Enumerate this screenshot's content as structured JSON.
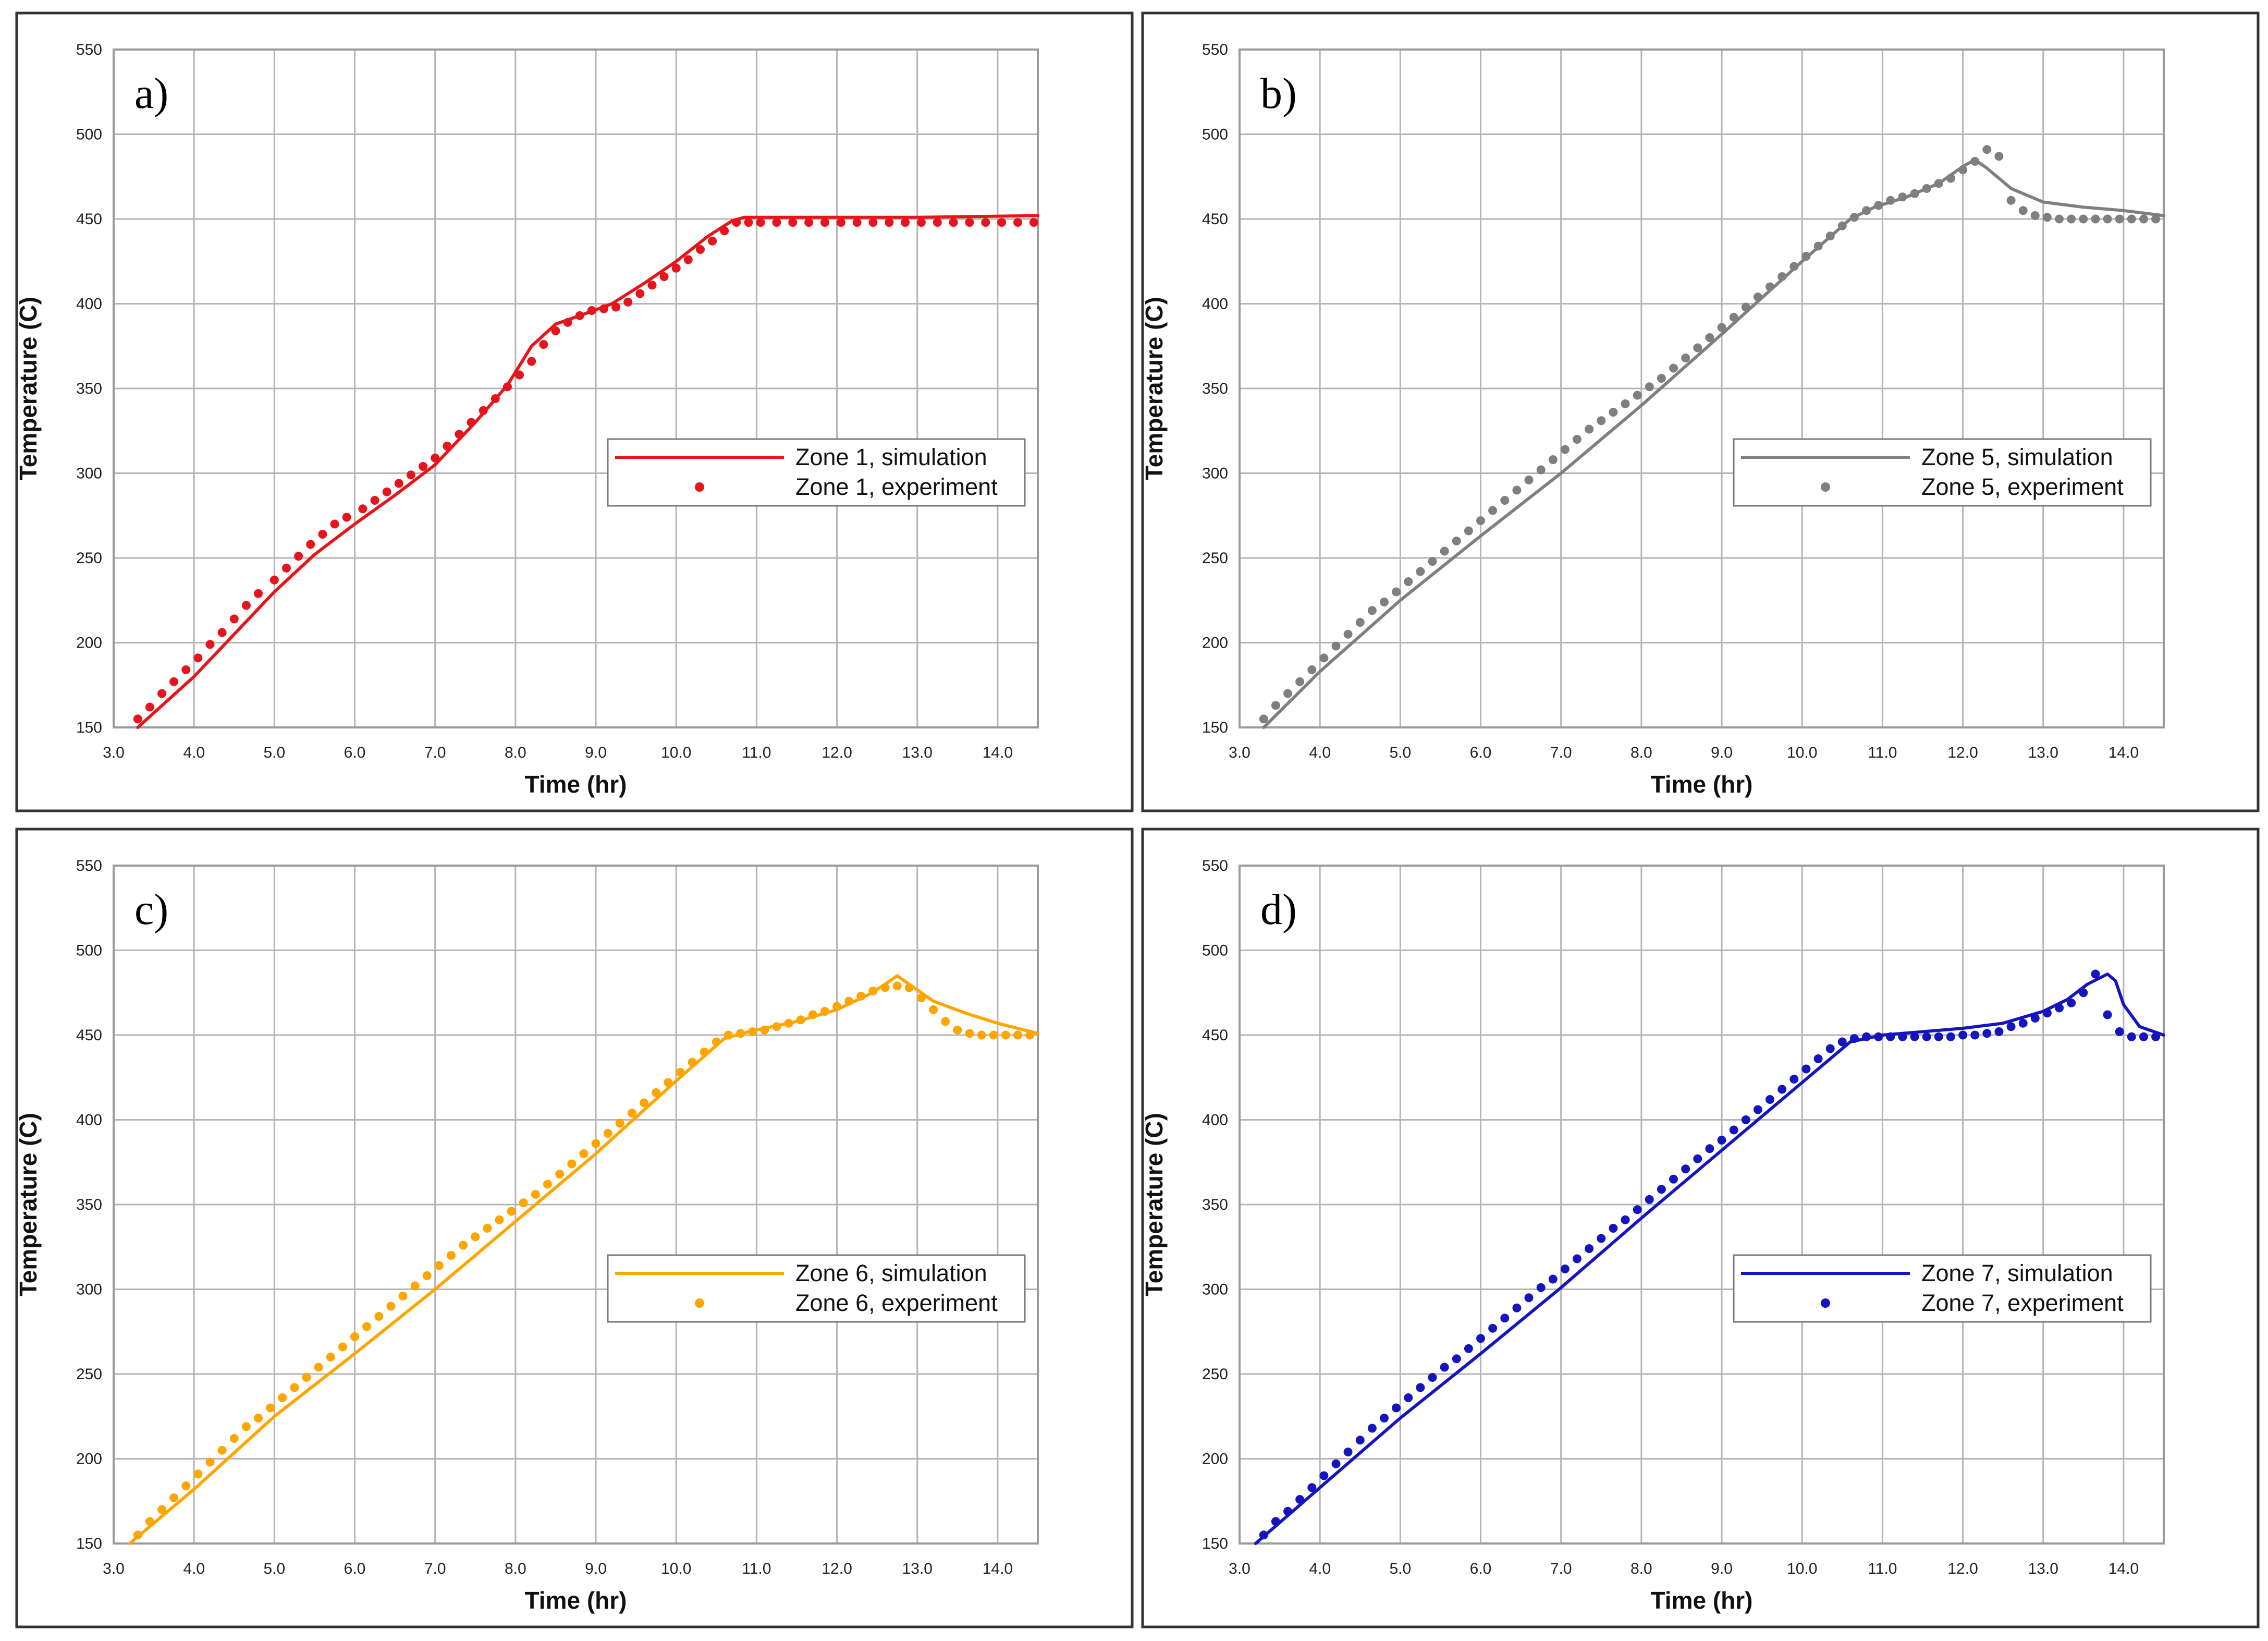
{
  "chart_data": [
    {
      "type": "scatter",
      "panel_label": "a)",
      "color": "#e8141c",
      "xlabel": "Time (hr)",
      "ylabel": "Temperature (C)",
      "xlim": [
        3.0,
        14.5
      ],
      "ylim": [
        150,
        550
      ],
      "xticks": [
        "3.0",
        "4.0",
        "5.0",
        "6.0",
        "7.0",
        "8.0",
        "9.0",
        "10.0",
        "11.0",
        "12.0",
        "13.0",
        "14.0"
      ],
      "yticks": [
        "150",
        "200",
        "250",
        "300",
        "350",
        "400",
        "450",
        "500",
        "550"
      ],
      "grid": true,
      "legend_position": "center-right",
      "series": [
        {
          "name": "Zone 1, simulation",
          "kind": "line",
          "x": [
            3.3,
            4.0,
            4.5,
            5.0,
            5.5,
            6.0,
            6.5,
            7.0,
            7.5,
            7.9,
            8.2,
            8.5,
            8.8,
            9.2,
            9.6,
            10.0,
            10.4,
            10.7,
            10.85,
            12.0,
            13.0,
            14.5
          ],
          "y": [
            150,
            180,
            205,
            230,
            252,
            270,
            287,
            305,
            330,
            352,
            375,
            388,
            393,
            400,
            412,
            425,
            440,
            449,
            451,
            451,
            451,
            452
          ]
        },
        {
          "name": "Zone 1, experiment",
          "kind": "scatter",
          "x": [
            3.3,
            3.45,
            3.6,
            3.75,
            3.9,
            4.05,
            4.2,
            4.35,
            4.5,
            4.65,
            4.8,
            5.0,
            5.15,
            5.3,
            5.45,
            5.6,
            5.75,
            5.9,
            6.1,
            6.25,
            6.4,
            6.55,
            6.7,
            6.85,
            7.0,
            7.15,
            7.3,
            7.45,
            7.6,
            7.75,
            7.9,
            8.05,
            8.2,
            8.35,
            8.5,
            8.65,
            8.8,
            8.95,
            9.1,
            9.25,
            9.4,
            9.55,
            9.7,
            9.85,
            10.0,
            10.15,
            10.3,
            10.45,
            10.6,
            10.75,
            10.9,
            11.05,
            11.25,
            11.45,
            11.65,
            11.85,
            12.05,
            12.25,
            12.45,
            12.65,
            12.85,
            13.05,
            13.25,
            13.45,
            13.65,
            13.85,
            14.05,
            14.25,
            14.45
          ],
          "y": [
            155,
            162,
            170,
            177,
            184,
            191,
            199,
            206,
            214,
            222,
            229,
            237,
            244,
            251,
            258,
            264,
            270,
            274,
            279,
            284,
            289,
            294,
            299,
            304,
            309,
            316,
            323,
            330,
            337,
            344,
            351,
            358,
            366,
            376,
            384,
            389,
            393,
            396,
            397,
            398,
            401,
            406,
            411,
            416,
            421,
            426,
            432,
            437,
            443,
            448,
            448,
            448,
            448,
            448,
            448,
            448,
            448,
            448,
            448,
            448,
            448,
            448,
            448,
            448,
            448,
            448,
            448,
            448,
            448
          ]
        }
      ]
    },
    {
      "type": "scatter",
      "panel_label": "b)",
      "color": "#7f7f7f",
      "xlabel": "Time (hr)",
      "ylabel": "Temperature (C)",
      "xlim": [
        3.0,
        14.5
      ],
      "ylim": [
        150,
        550
      ],
      "xticks": [
        "3.0",
        "4.0",
        "5.0",
        "6.0",
        "7.0",
        "8.0",
        "9.0",
        "10.0",
        "11.0",
        "12.0",
        "13.0",
        "14.0"
      ],
      "yticks": [
        "150",
        "200",
        "250",
        "300",
        "350",
        "400",
        "450",
        "500",
        "550"
      ],
      "grid": true,
      "legend_position": "center-right",
      "series": [
        {
          "name": "Zone 5, simulation",
          "kind": "line",
          "x": [
            3.3,
            4.0,
            5.0,
            6.0,
            7.0,
            8.0,
            9.0,
            10.0,
            10.6,
            10.9,
            11.3,
            11.7,
            12.0,
            12.15,
            12.3,
            12.6,
            13.0,
            13.5,
            14.0,
            14.5
          ],
          "y": [
            150,
            183,
            225,
            263,
            300,
            340,
            382,
            425,
            450,
            457,
            463,
            471,
            481,
            485,
            480,
            468,
            460,
            457,
            455,
            452
          ]
        },
        {
          "name": "Zone 5, experiment",
          "kind": "scatter",
          "x": [
            3.3,
            3.45,
            3.6,
            3.75,
            3.9,
            4.05,
            4.2,
            4.35,
            4.5,
            4.65,
            4.8,
            4.95,
            5.1,
            5.25,
            5.4,
            5.55,
            5.7,
            5.85,
            6.0,
            6.15,
            6.3,
            6.45,
            6.6,
            6.75,
            6.9,
            7.05,
            7.2,
            7.35,
            7.5,
            7.65,
            7.8,
            7.95,
            8.1,
            8.25,
            8.4,
            8.55,
            8.7,
            8.85,
            9.0,
            9.15,
            9.3,
            9.45,
            9.6,
            9.75,
            9.9,
            10.05,
            10.2,
            10.35,
            10.5,
            10.65,
            10.8,
            10.95,
            11.1,
            11.25,
            11.4,
            11.55,
            11.7,
            11.85,
            12.0,
            12.15,
            12.3,
            12.45,
            12.6,
            12.75,
            12.9,
            13.05,
            13.2,
            13.35,
            13.5,
            13.65,
            13.8,
            13.95,
            14.1,
            14.25,
            14.4
          ],
          "y": [
            155,
            163,
            170,
            177,
            184,
            191,
            198,
            205,
            212,
            219,
            224,
            230,
            236,
            242,
            248,
            254,
            260,
            266,
            272,
            278,
            284,
            290,
            296,
            302,
            308,
            314,
            320,
            326,
            331,
            336,
            341,
            346,
            351,
            356,
            362,
            368,
            374,
            380,
            386,
            392,
            398,
            404,
            410,
            416,
            422,
            428,
            434,
            440,
            446,
            451,
            455,
            458,
            461,
            463,
            465,
            468,
            471,
            474,
            479,
            484,
            491,
            487,
            461,
            455,
            452,
            451,
            450,
            450,
            450,
            450,
            450,
            450,
            450,
            450,
            450
          ]
        }
      ]
    },
    {
      "type": "scatter",
      "panel_label": "c)",
      "color": "#ffa500",
      "xlabel": "Time (hr)",
      "ylabel": "Temperature (C)",
      "xlim": [
        3.0,
        14.5
      ],
      "ylim": [
        150,
        550
      ],
      "xticks": [
        "3.0",
        "4.0",
        "5.0",
        "6.0",
        "7.0",
        "8.0",
        "9.0",
        "10.0",
        "11.0",
        "12.0",
        "13.0",
        "14.0"
      ],
      "yticks": [
        "150",
        "200",
        "250",
        "300",
        "350",
        "400",
        "450",
        "500",
        "550"
      ],
      "grid": true,
      "legend_position": "center-right",
      "series": [
        {
          "name": "Zone 6, simulation",
          "kind": "line",
          "x": [
            3.2,
            4.0,
            5.0,
            6.0,
            7.0,
            8.0,
            9.0,
            10.0,
            10.6,
            10.9,
            11.5,
            12.0,
            12.4,
            12.6,
            12.75,
            12.9,
            13.2,
            13.6,
            14.0,
            14.5
          ],
          "y": [
            150,
            182,
            225,
            262,
            300,
            340,
            380,
            423,
            448,
            452,
            458,
            465,
            474,
            480,
            485,
            480,
            470,
            463,
            457,
            451
          ]
        },
        {
          "name": "Zone 6, experiment",
          "kind": "scatter",
          "x": [
            3.3,
            3.45,
            3.6,
            3.75,
            3.9,
            4.05,
            4.2,
            4.35,
            4.5,
            4.65,
            4.8,
            4.95,
            5.1,
            5.25,
            5.4,
            5.55,
            5.7,
            5.85,
            6.0,
            6.15,
            6.3,
            6.45,
            6.6,
            6.75,
            6.9,
            7.05,
            7.2,
            7.35,
            7.5,
            7.65,
            7.8,
            7.95,
            8.1,
            8.25,
            8.4,
            8.55,
            8.7,
            8.85,
            9.0,
            9.15,
            9.3,
            9.45,
            9.6,
            9.75,
            9.9,
            10.05,
            10.2,
            10.35,
            10.5,
            10.65,
            10.8,
            10.95,
            11.1,
            11.25,
            11.4,
            11.55,
            11.7,
            11.85,
            12.0,
            12.15,
            12.3,
            12.45,
            12.6,
            12.75,
            12.9,
            13.05,
            13.2,
            13.35,
            13.5,
            13.65,
            13.8,
            13.95,
            14.1,
            14.25,
            14.4
          ],
          "y": [
            155,
            163,
            170,
            177,
            184,
            191,
            198,
            205,
            212,
            219,
            224,
            230,
            236,
            242,
            248,
            254,
            260,
            266,
            272,
            278,
            284,
            290,
            296,
            302,
            308,
            314,
            320,
            326,
            331,
            336,
            341,
            346,
            351,
            356,
            362,
            368,
            374,
            380,
            386,
            392,
            398,
            404,
            410,
            416,
            422,
            428,
            434,
            440,
            446,
            450,
            451,
            452,
            453,
            455,
            457,
            459,
            462,
            464,
            467,
            470,
            473,
            476,
            478,
            479,
            478,
            472,
            465,
            458,
            453,
            451,
            450,
            450,
            450,
            450,
            450
          ]
        }
      ]
    },
    {
      "type": "scatter",
      "panel_label": "d)",
      "color": "#1515c0",
      "xlabel": "Time (hr)",
      "ylabel": "Temperature (C)",
      "xlim": [
        3.0,
        14.5
      ],
      "ylim": [
        150,
        550
      ],
      "xticks": [
        "3.0",
        "4.0",
        "5.0",
        "6.0",
        "7.0",
        "8.0",
        "9.0",
        "10.0",
        "11.0",
        "12.0",
        "13.0",
        "14.0"
      ],
      "yticks": [
        "150",
        "200",
        "250",
        "300",
        "350",
        "400",
        "450",
        "500",
        "550"
      ],
      "grid": true,
      "legend_position": "center-right",
      "series": [
        {
          "name": "Zone 7, simulation",
          "kind": "line",
          "x": [
            3.2,
            4.0,
            5.0,
            6.0,
            7.0,
            8.0,
            9.0,
            10.0,
            10.6,
            11.0,
            11.5,
            12.0,
            12.5,
            13.0,
            13.3,
            13.55,
            13.8,
            13.9,
            14.0,
            14.2,
            14.5
          ],
          "y": [
            150,
            183,
            224,
            262,
            301,
            342,
            382,
            422,
            446,
            450,
            452,
            454,
            457,
            464,
            471,
            480,
            486,
            482,
            468,
            455,
            450
          ]
        },
        {
          "name": "Zone 7, experiment",
          "kind": "scatter",
          "x": [
            3.3,
            3.45,
            3.6,
            3.75,
            3.9,
            4.05,
            4.2,
            4.35,
            4.5,
            4.65,
            4.8,
            4.95,
            5.1,
            5.25,
            5.4,
            5.55,
            5.7,
            5.85,
            6.0,
            6.15,
            6.3,
            6.45,
            6.6,
            6.75,
            6.9,
            7.05,
            7.2,
            7.35,
            7.5,
            7.65,
            7.8,
            7.95,
            8.1,
            8.25,
            8.4,
            8.55,
            8.7,
            8.85,
            9.0,
            9.15,
            9.3,
            9.45,
            9.6,
            9.75,
            9.9,
            10.05,
            10.2,
            10.35,
            10.5,
            10.65,
            10.8,
            10.95,
            11.1,
            11.25,
            11.4,
            11.55,
            11.7,
            11.85,
            12.0,
            12.15,
            12.3,
            12.45,
            12.6,
            12.75,
            12.9,
            13.05,
            13.2,
            13.35,
            13.5,
            13.65,
            13.8,
            13.95,
            14.1,
            14.25,
            14.4
          ],
          "y": [
            155,
            163,
            169,
            176,
            183,
            190,
            197,
            204,
            211,
            218,
            224,
            230,
            236,
            242,
            248,
            254,
            259,
            265,
            271,
            277,
            283,
            289,
            295,
            301,
            306,
            312,
            318,
            324,
            330,
            336,
            341,
            347,
            353,
            359,
            365,
            371,
            377,
            383,
            388,
            394,
            400,
            406,
            412,
            418,
            424,
            430,
            436,
            442,
            446,
            448,
            449,
            449,
            449,
            449,
            449,
            449,
            449,
            449,
            450,
            450,
            451,
            452,
            455,
            457,
            460,
            463,
            466,
            469,
            475,
            486,
            462,
            452,
            449,
            449,
            449
          ]
        }
      ]
    }
  ]
}
